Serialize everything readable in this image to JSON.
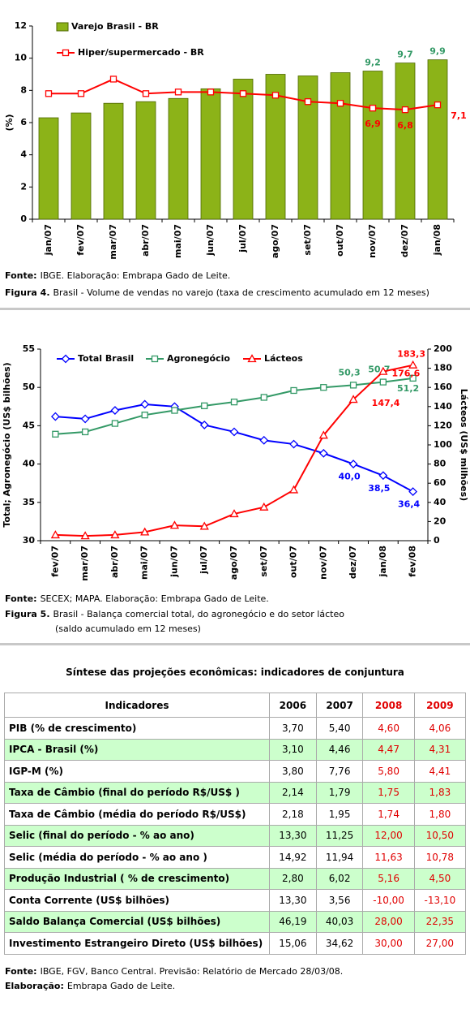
{
  "chart_data": [
    {
      "type": "combo",
      "categories": [
        "jan/07",
        "fev/07",
        "mar/07",
        "abr/07",
        "mai/07",
        "jun/07",
        "jul/07",
        "ago/07",
        "set/07",
        "out/07",
        "nov/07",
        "dez/07",
        "jan/08"
      ],
      "ylabel": "(%)",
      "ylim": [
        0,
        12
      ],
      "yticks": [
        0,
        2,
        4,
        6,
        8,
        10,
        12
      ],
      "grid": false,
      "legend": "upper left",
      "series": [
        {
          "name": "Varejo Brasil - BR",
          "type": "bar",
          "color": "#8cb318",
          "values": [
            6.3,
            6.6,
            7.2,
            7.3,
            7.5,
            8.1,
            8.7,
            9.0,
            8.9,
            9.1,
            9.2,
            9.7,
            9.9
          ],
          "value_labels": [
            null,
            null,
            null,
            null,
            null,
            null,
            null,
            null,
            null,
            null,
            "9,2",
            "9,7",
            "9,9"
          ]
        },
        {
          "name": "Hiper/supermercado - BR",
          "type": "line",
          "color": "#ff0000",
          "marker": "square",
          "values": [
            7.8,
            7.8,
            8.7,
            7.8,
            7.9,
            7.9,
            7.8,
            7.7,
            7.3,
            7.2,
            6.9,
            6.8,
            7.1
          ],
          "value_labels": [
            null,
            null,
            null,
            null,
            null,
            null,
            null,
            null,
            null,
            null,
            "6,9",
            "6,8",
            "7,1"
          ]
        }
      ]
    },
    {
      "type": "line",
      "categories": [
        "fev/07",
        "mar/07",
        "abr/07",
        "mai/07",
        "jun/07",
        "jul/07",
        "ago/07",
        "set/07",
        "out/07",
        "nov/07",
        "dez/07",
        "jan/08",
        "fev/08"
      ],
      "ylabel": "Total; Agronegócio (US$ bilhões)",
      "y2label": "Lácteos (US$ milhões)",
      "ylim": [
        30,
        55
      ],
      "yticks": [
        30,
        35,
        40,
        45,
        50,
        55
      ],
      "y2lim": [
        0,
        200
      ],
      "y2ticks": [
        0,
        20,
        40,
        60,
        80,
        100,
        120,
        140,
        160,
        180,
        200
      ],
      "grid": false,
      "legend": "upper left",
      "series": [
        {
          "name": "Total Brasil",
          "color": "#0000ff",
          "marker": "diamond",
          "values": [
            46.2,
            45.9,
            47.0,
            47.8,
            47.5,
            45.1,
            44.2,
            43.1,
            42.6,
            41.4,
            40.0,
            38.5,
            36.4
          ],
          "value_labels": [
            null,
            null,
            null,
            null,
            null,
            null,
            null,
            null,
            null,
            null,
            "40,0",
            "38,5",
            "36,4"
          ]
        },
        {
          "name": "Agronegócio",
          "color": "#339966",
          "marker": "square",
          "values": [
            43.9,
            44.2,
            45.3,
            46.4,
            47.0,
            47.6,
            48.1,
            48.7,
            49.6,
            50.0,
            50.3,
            50.7,
            51.2
          ],
          "value_labels": [
            null,
            null,
            null,
            null,
            null,
            null,
            null,
            null,
            null,
            null,
            "50,3",
            "50,7",
            "51,2"
          ]
        },
        {
          "name": "Lácteos",
          "color": "#ff0000",
          "marker": "triangle",
          "axis": "y2",
          "values": [
            6,
            5,
            6,
            9,
            16,
            15,
            28,
            35,
            53,
            110,
            147.4,
            176.6,
            183.3
          ],
          "value_labels": [
            null,
            null,
            null,
            null,
            null,
            null,
            null,
            null,
            null,
            null,
            "147,4",
            "176,6",
            "183,3"
          ]
        }
      ]
    }
  ],
  "captions": [
    {
      "source": {
        "label": "Fonte:",
        "text": "IBGE. Elaboração: Embrapa Gado de Leite."
      },
      "figure": {
        "label": "Figura 4.",
        "text": [
          "Brasil - Volume de vendas no varejo (taxa de crescimento acumulado em 12 meses)"
        ]
      }
    },
    {
      "source": {
        "label": "Fonte:",
        "text": "SECEX; MAPA. Elaboração: Embrapa Gado de Leite."
      },
      "figure": {
        "label": "Figura 5.",
        "text": [
          "Brasil - Balança comercial total, do agronegócio e do setor lácteo",
          "(saldo acumulado em 12 meses)"
        ]
      }
    }
  ],
  "table": {
    "title": "Síntese das projeções econômicas: indicadores de conjuntura",
    "header": [
      "Indicadores",
      "2006",
      "2007",
      "2008",
      "2009"
    ],
    "rows": [
      [
        "PIB (% de crescimento)",
        "3,70",
        "5,40",
        "4,60",
        "4,06"
      ],
      [
        "IPCA - Brasil (%)",
        "3,10",
        "4,46",
        "4,47",
        "4,31"
      ],
      [
        "IGP-M (%)",
        "3,80",
        "7,76",
        "5,80",
        "4,41"
      ],
      [
        "Taxa de Câmbio (final do período R$/US$ )",
        "2,14",
        "1,79",
        "1,75",
        "1,83"
      ],
      [
        "Taxa de Câmbio (média do período R$/US$)",
        "2,18",
        "1,95",
        "1,74",
        "1,80"
      ],
      [
        "Selic (final do período - % ao ano)",
        "13,30",
        "11,25",
        "12,00",
        "10,50"
      ],
      [
        "Selic (média do período - % ao ano )",
        "14,92",
        "11,94",
        "11,63",
        "10,78"
      ],
      [
        "Produção Industrial ( % de crescimento)",
        "2,80",
        "6,02",
        "5,16",
        "4,50"
      ],
      [
        "Conta Corrente (US$ bilhões)",
        "13,30",
        "3,56",
        "-10,00",
        "-13,10"
      ],
      [
        "Saldo Balança Comercial (US$ bilhões)",
        "46,19",
        "40,03",
        "28,00",
        "22,35"
      ],
      [
        "Investimento Estrangeiro Direto (US$ bilhões)",
        "15,06",
        "34,62",
        "30,00",
        "27,00"
      ]
    ]
  },
  "table_notes": [
    {
      "label": "Fonte:",
      "text": "IBGE, FGV, Banco Central. Previsão: Relatório de Mercado 28/03/08."
    },
    {
      "label": "Elaboração:",
      "text": "Embrapa Gado de Leite."
    }
  ]
}
